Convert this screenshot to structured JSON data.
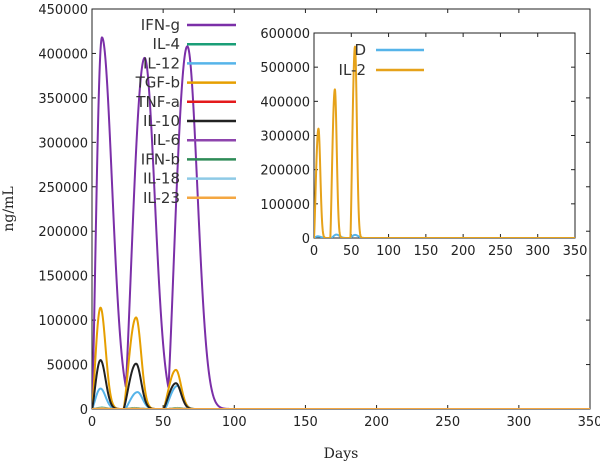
{
  "chart_data": [
    {
      "type": "line",
      "xlabel": "Days",
      "ylabel": "ng/mL",
      "xlim": [
        0,
        350
      ],
      "ylim": [
        0,
        450000
      ],
      "xticks": [
        0,
        50,
        100,
        150,
        200,
        250,
        300,
        350
      ],
      "yticks": [
        0,
        50000,
        100000,
        150000,
        200000,
        250000,
        300000,
        350000,
        400000,
        450000
      ],
      "grid": false,
      "legend_position": "top-left",
      "series": [
        {
          "name": "IFN-g",
          "color": "#7b2fa8",
          "peaks": [
            [
              7,
              418000
            ],
            [
              37,
              395000
            ],
            [
              67,
              408000
            ]
          ],
          "rise": 6.5,
          "fall": 10
        },
        {
          "name": "IL-4",
          "color": "#1a9e77",
          "peaks": [
            [
              7,
              1500
            ],
            [
              30,
              1200
            ],
            [
              60,
              1200
            ]
          ],
          "rise": 3,
          "fall": 5
        },
        {
          "name": "IL-12",
          "color": "#56b4e9",
          "peaks": [
            [
              6,
              23000
            ],
            [
              32,
              19000
            ],
            [
              60,
              26000
            ]
          ],
          "rise": 4,
          "fall": 5
        },
        {
          "name": "TGF-b",
          "color": "#e69f00",
          "peaks": [
            [
              6,
              114000
            ],
            [
              31,
              103000
            ],
            [
              59,
              44000
            ]
          ],
          "rise": 4,
          "fall": 5
        },
        {
          "name": "TNF-a",
          "color": "#e41a1c",
          "peaks": [
            [
              7,
              400
            ],
            [
              30,
              300
            ],
            [
              60,
              300
            ]
          ],
          "rise": 3,
          "fall": 5
        },
        {
          "name": "IL-10",
          "color": "#222222",
          "peaks": [
            [
              6,
              55000
            ],
            [
              31,
              51000
            ],
            [
              59,
              29000
            ]
          ],
          "rise": 4,
          "fall": 5
        },
        {
          "name": "IL-6",
          "color": "#8e44ad",
          "peaks": [
            [
              7,
              600
            ],
            [
              30,
              500
            ],
            [
              60,
              500
            ]
          ],
          "rise": 3,
          "fall": 5
        },
        {
          "name": "IFN-b",
          "color": "#2e8b57",
          "peaks": [
            [
              7,
              800
            ],
            [
              30,
              600
            ],
            [
              60,
              600
            ]
          ],
          "rise": 3,
          "fall": 5
        },
        {
          "name": "IL-18",
          "color": "#8ecae6",
          "peaks": [
            [
              7,
              1000
            ],
            [
              30,
              800
            ],
            [
              60,
              800
            ]
          ],
          "rise": 3,
          "fall": 5
        },
        {
          "name": "IL-23",
          "color": "#f4a742",
          "peaks": [
            [
              7,
              700
            ],
            [
              30,
              500
            ],
            [
              60,
              500
            ]
          ],
          "rise": 3,
          "fall": 5
        }
      ]
    },
    {
      "type": "line",
      "xlim": [
        0,
        350
      ],
      "ylim": [
        0,
        600000
      ],
      "xticks": [
        0,
        50,
        100,
        150,
        200,
        250,
        300,
        350
      ],
      "yticks": [
        0,
        100000,
        200000,
        300000,
        400000,
        500000,
        600000
      ],
      "grid": false,
      "legend_position": "top-left",
      "series": [
        {
          "name": "D",
          "color": "#56b4e9",
          "peaks": [
            [
              5,
              5000
            ],
            [
              30,
              10000
            ],
            [
              55,
              9000
            ]
          ],
          "rise": 3,
          "fall": 6
        },
        {
          "name": "IL-2",
          "color": "#e6a21a",
          "peaks": [
            [
              6,
              320000
            ],
            [
              28,
              435000
            ],
            [
              55,
              560000
            ]
          ],
          "rise": 2.8,
          "fall": 3.5
        }
      ]
    }
  ]
}
